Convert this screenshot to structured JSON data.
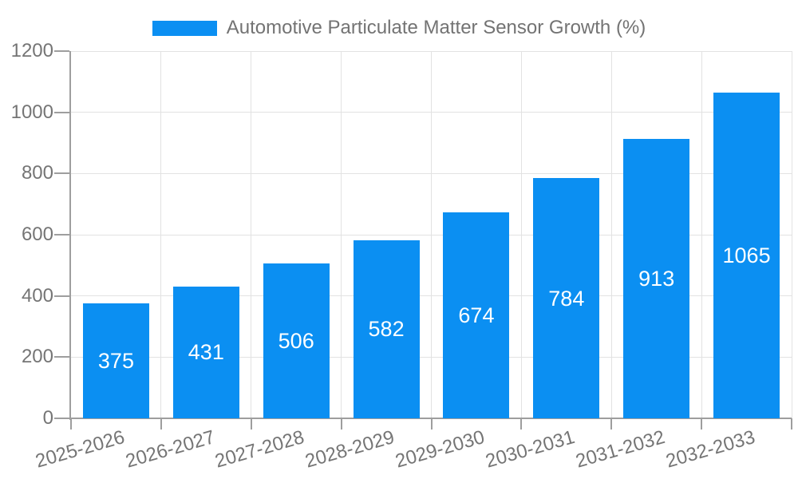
{
  "legend": {
    "label": "Automotive Particulate Matter Sensor Growth (%)"
  },
  "chart_data": {
    "type": "bar",
    "title": "Automotive Particulate Matter Sensor Growth (%)",
    "categories": [
      "2025-2026",
      "2026-2027",
      "2027-2028",
      "2028-2029",
      "2029-2030",
      "2030-2031",
      "2031-2032",
      "2032-2033"
    ],
    "values": [
      375,
      431,
      506,
      582,
      674,
      784,
      913,
      1065
    ],
    "xlabel": "",
    "ylabel": "",
    "ylim": [
      0,
      1200
    ],
    "yticks": [
      0,
      200,
      400,
      600,
      800,
      1000,
      1200
    ],
    "grid": true,
    "legend_position": "top-center",
    "bar_color": "#0b8ff2",
    "value_label_color": "#ffffff",
    "value_label_position": "inside-center",
    "x_label_rotation_deg": -16
  },
  "colors": {
    "background": "#ffffff",
    "axis": "#9e9e9e",
    "tick": "#9e9e9e",
    "gridline": "#e2e2e2",
    "axis_text": "#757575",
    "legend_text": "#737373"
  }
}
